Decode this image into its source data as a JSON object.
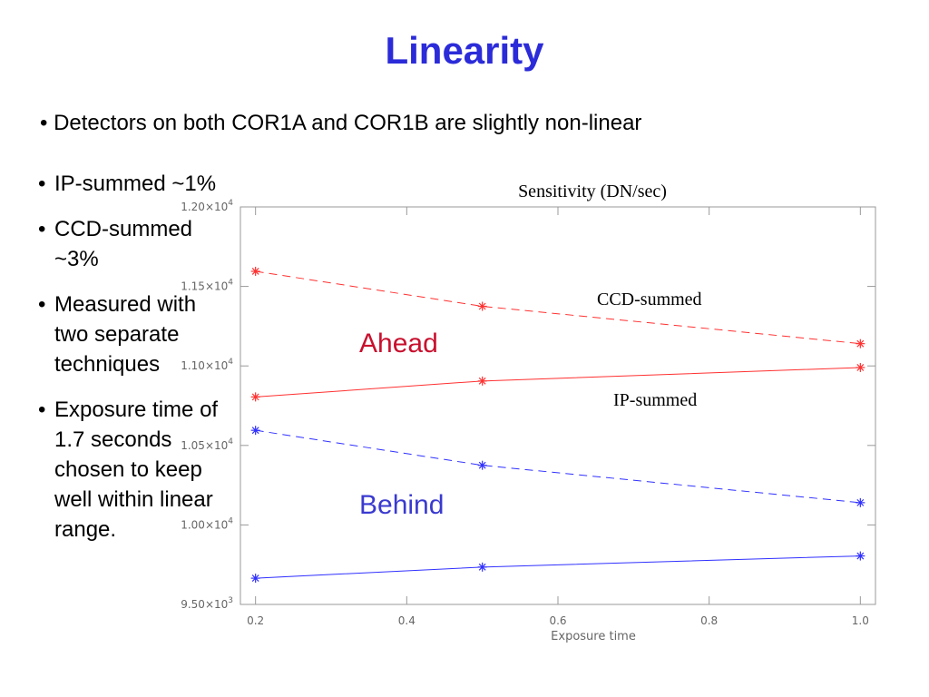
{
  "slide": {
    "title": "Linearity",
    "main_bullet": "Detectors on both COR1A and COR1B are slightly non-linear",
    "bullets": [
      "IP-summed ~1%",
      "CCD-summed ~3%",
      "Measured with two separate techniques",
      "Exposure time of 1.7 seconds chosen to keep well within linear range."
    ],
    "colors": {
      "title": "#2b2bd9",
      "ahead": "#ff3030",
      "behind": "#3030ff",
      "ahead_label": "#c8102e",
      "behind_label": "#3a3ad0"
    }
  },
  "chart_data": {
    "type": "line",
    "title": "Sensitivity (DN/sec)",
    "xlabel": "Exposure time",
    "ylabel": "",
    "xlim": [
      0.18,
      1.02
    ],
    "ylim": [
      9500,
      12000
    ],
    "x_ticks": [
      0.2,
      0.4,
      0.6,
      0.8,
      1.0
    ],
    "x_tick_labels": [
      "0.2",
      "0.4",
      "0.6",
      "0.8",
      "1.0"
    ],
    "y_ticks": [
      9500,
      10000,
      10500,
      11000,
      11500,
      12000
    ],
    "y_tick_labels": [
      {
        "mantissa": "9.50×10",
        "exp": "3"
      },
      {
        "mantissa": "1.00×10",
        "exp": "4"
      },
      {
        "mantissa": "1.05×10",
        "exp": "4"
      },
      {
        "mantissa": "1.10×10",
        "exp": "4"
      },
      {
        "mantissa": "1.15×10",
        "exp": "4"
      },
      {
        "mantissa": "1.20×10",
        "exp": "4"
      }
    ],
    "grid": false,
    "group_labels": [
      "Ahead",
      "Behind"
    ],
    "annotations": [
      "CCD-summed",
      "IP-summed"
    ],
    "series": [
      {
        "group": "Ahead",
        "mode": "CCD-summed",
        "color": "#ff3030",
        "dashed": true,
        "x": [
          0.2,
          0.5,
          1.0
        ],
        "y": [
          11595,
          11375,
          11140
        ]
      },
      {
        "group": "Ahead",
        "mode": "IP-summed",
        "color": "#ff3030",
        "dashed": false,
        "x": [
          0.2,
          0.5,
          1.0
        ],
        "y": [
          10805,
          10905,
          10990
        ]
      },
      {
        "group": "Behind",
        "mode": "CCD-summed",
        "color": "#3030ff",
        "dashed": true,
        "x": [
          0.2,
          0.5,
          1.0
        ],
        "y": [
          10595,
          10375,
          10140
        ]
      },
      {
        "group": "Behind",
        "mode": "IP-summed",
        "color": "#3030ff",
        "dashed": false,
        "x": [
          0.2,
          0.5,
          1.0
        ],
        "y": [
          9665,
          9735,
          9805
        ]
      }
    ]
  }
}
